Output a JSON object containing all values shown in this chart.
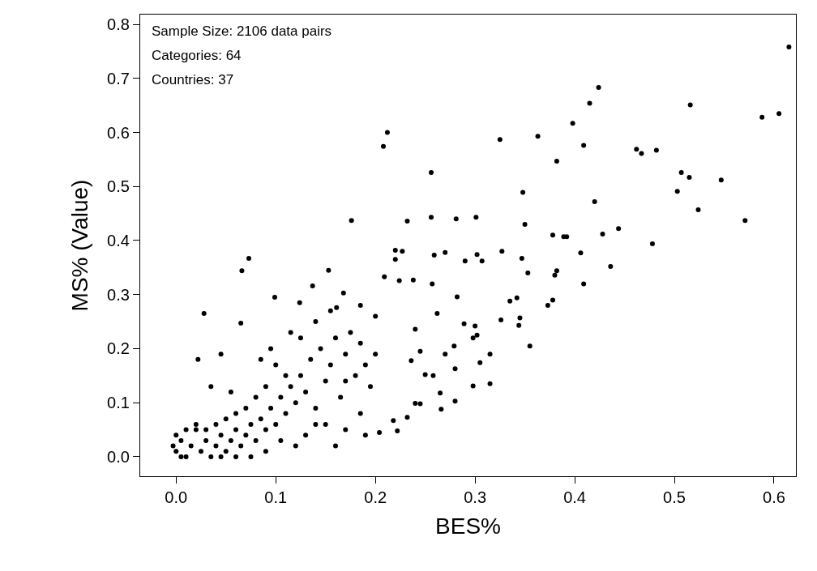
{
  "chart_data": {
    "type": "scatter",
    "xlabel": "BES%",
    "ylabel": "MS% (Value)",
    "annotations": [
      "Sample Size: 2106 data pairs",
      "Categories: 64",
      "Countries: 37"
    ],
    "xlim": [
      -0.036,
      0.622
    ],
    "ylim": [
      -0.036,
      0.818
    ],
    "xticks": [
      {
        "value": 0,
        "label": "0.0"
      },
      0.1,
      0.2,
      0.3,
      0.4,
      0.5,
      0.6
    ],
    "yticks": [
      {
        "value": 0,
        "label": "0.0"
      },
      0.1,
      0.2,
      0.3,
      0.4,
      0.5,
      0.6,
      0.7,
      0.8
    ],
    "marker": "circle",
    "series": [
      {
        "color": "#000000",
        "x": [
          0.615,
          0.605,
          0.588,
          0.516,
          0.515,
          0.507,
          0.503,
          0.524,
          0.547,
          0.571,
          0.462,
          0.467,
          0.482,
          0.478,
          0.444,
          0.436,
          0.424,
          0.415,
          0.409,
          0.398,
          0.42,
          0.428,
          0.406,
          0.409,
          0.392,
          0.389,
          0.378,
          0.382,
          0.363,
          0.325,
          0.38,
          0.382,
          0.373,
          0.378,
          0.348,
          0.35,
          0.347,
          0.353,
          0.327,
          0.326,
          0.345,
          0.344,
          0.355,
          0.342,
          0.335,
          0.307,
          0.301,
          0.302,
          0.29,
          0.281,
          0.282,
          0.289,
          0.3,
          0.298,
          0.302,
          0.315,
          0.305,
          0.298,
          0.315,
          0.256,
          0.256,
          0.27,
          0.259,
          0.257,
          0.262,
          0.279,
          0.28,
          0.27,
          0.258,
          0.265,
          0.266,
          0.28,
          0.232,
          0.227,
          0.22,
          0.212,
          0.208,
          0.22,
          0.209,
          0.238,
          0.224,
          0.24,
          0.245,
          0.236,
          0.25,
          0.24,
          0.245,
          0.218,
          0.232,
          0.222,
          0.204,
          0.176,
          0.168,
          0.153,
          0.161,
          0.137,
          0.124,
          0.099,
          0.073,
          0.066,
          0.065,
          0.028,
          0.022,
          0,
          0.005,
          0.01,
          0.015,
          0.02,
          0.025,
          0.03,
          0.035,
          0.04,
          0.045,
          0.05,
          0.055,
          0.06,
          0.065,
          0.07,
          0.075,
          0.08,
          0.085,
          0.09,
          0.095,
          0.1,
          0.105,
          0.11,
          0.115,
          0.12,
          0.125,
          0.13,
          0.135,
          0.14,
          0.145,
          0.15,
          0.155,
          0.16,
          0.165,
          0.17,
          0.175,
          0.18,
          0.185,
          0.19,
          0.195,
          0.2,
          0.2,
          0.185,
          0.17,
          0.15,
          0.13,
          0.12,
          0.11,
          0.1,
          0.09,
          0.08,
          0.07,
          0.06,
          0.05,
          0.04,
          0.03,
          0.02,
          0.01,
          0.005,
          0.0,
          -0.003,
          0.035,
          0.045,
          0.055,
          0.085,
          0.095,
          0.115,
          0.125,
          0.14,
          0.155,
          0.185,
          0.14,
          0.16,
          0.19,
          0.17,
          0.075,
          0.09,
          0.105,
          0.06,
          0.045
        ],
        "values": [
          0.758,
          0.635,
          0.628,
          0.651,
          0.517,
          0.526,
          0.491,
          0.457,
          0.512,
          0.437,
          0.569,
          0.561,
          0.567,
          0.394,
          0.422,
          0.352,
          0.683,
          0.654,
          0.576,
          0.617,
          0.472,
          0.412,
          0.377,
          0.32,
          0.407,
          0.407,
          0.41,
          0.547,
          0.593,
          0.587,
          0.336,
          0.344,
          0.28,
          0.29,
          0.489,
          0.43,
          0.367,
          0.34,
          0.38,
          0.253,
          0.257,
          0.243,
          0.205,
          0.294,
          0.288,
          0.362,
          0.443,
          0.374,
          0.362,
          0.44,
          0.296,
          0.246,
          0.242,
          0.22,
          0.225,
          0.19,
          0.174,
          0.131,
          0.135,
          0.526,
          0.443,
          0.378,
          0.373,
          0.32,
          0.265,
          0.205,
          0.163,
          0.19,
          0.15,
          0.118,
          0.088,
          0.103,
          0.436,
          0.38,
          0.382,
          0.6,
          0.574,
          0.365,
          0.333,
          0.327,
          0.326,
          0.236,
          0.195,
          0.178,
          0.152,
          0.099,
          0.098,
          0.067,
          0.073,
          0.048,
          0.045,
          0.437,
          0.303,
          0.345,
          0.276,
          0.316,
          0.285,
          0.295,
          0.367,
          0.344,
          0.247,
          0.265,
          0.18,
          0.01,
          0.03,
          0.0,
          0.02,
          0.05,
          0.01,
          0.03,
          0.0,
          0.02,
          0.04,
          0.01,
          0.03,
          0.05,
          0.02,
          0.04,
          0.06,
          0.03,
          0.07,
          0.05,
          0.09,
          0.06,
          0.11,
          0.08,
          0.13,
          0.1,
          0.15,
          0.12,
          0.18,
          0.09,
          0.2,
          0.14,
          0.17,
          0.22,
          0.11,
          0.19,
          0.23,
          0.15,
          0.21,
          0.17,
          0.13,
          0.19,
          0.26,
          0.08,
          0.05,
          0.06,
          0.04,
          0.02,
          0.15,
          0.17,
          0.13,
          0.11,
          0.09,
          0.08,
          0.07,
          0.06,
          0.05,
          0.06,
          0.05,
          0.0,
          0.04,
          0.02,
          0.13,
          0.19,
          0.12,
          0.18,
          0.2,
          0.23,
          0.22,
          0.25,
          0.27,
          0.28,
          0.06,
          0.02,
          0.04,
          0.14,
          0.0,
          0.01,
          0.03,
          0.0,
          0.0
        ]
      }
    ]
  }
}
